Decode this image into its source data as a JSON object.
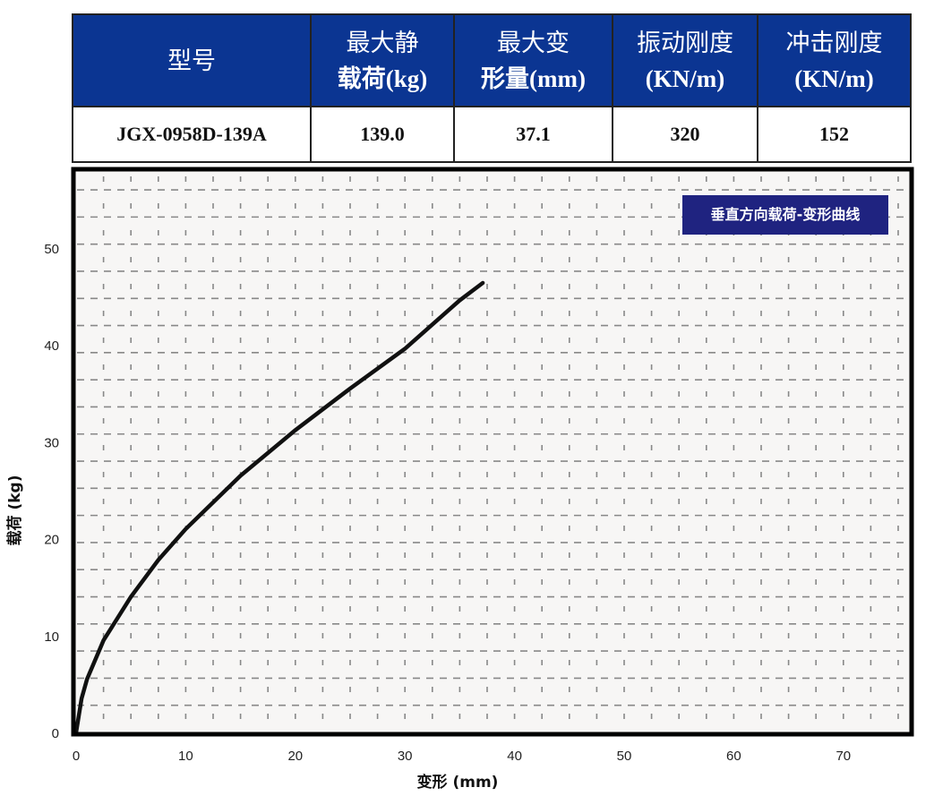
{
  "table": {
    "headers": [
      {
        "line1": "型号",
        "line2": ""
      },
      {
        "line1": "最大静",
        "line2": "载荷(kg)"
      },
      {
        "line1": "最大变",
        "line2": "形量(mm)"
      },
      {
        "line1": "振动刚度",
        "line2": "(KN/m)"
      },
      {
        "line1": "冲击刚度",
        "line2": "(KN/m)"
      }
    ],
    "row": [
      "JGX-0958D-139A",
      "139.0",
      "37.1",
      "320",
      "152"
    ],
    "header_color": "#0b3592"
  },
  "chart_data": {
    "type": "line",
    "title": "垂直方向载荷-变形曲线",
    "xlabel": "变形 (mm)",
    "ylabel": "载荷 (kg)",
    "xlim": [
      0,
      77
    ],
    "ylim": [
      0,
      58
    ],
    "xticks": [
      "0",
      "10",
      "20",
      "30",
      "40",
      "50",
      "60",
      "70"
    ],
    "yticks": [
      "0",
      "10",
      "20",
      "30",
      "40",
      "50"
    ],
    "grid": true,
    "legend_placement": "top-right",
    "legend_color": "#1f2380",
    "series": [
      {
        "color": "#111111",
        "x": [
          0,
          0.5,
          1,
          2.5,
          5,
          7.5,
          10,
          15,
          20,
          25,
          30,
          35,
          37.1
        ],
        "y": [
          0,
          3.5,
          5.5,
          9.5,
          14,
          17.8,
          21,
          26.5,
          31.2,
          35.5,
          39.6,
          44.6,
          46.4
        ]
      }
    ]
  }
}
